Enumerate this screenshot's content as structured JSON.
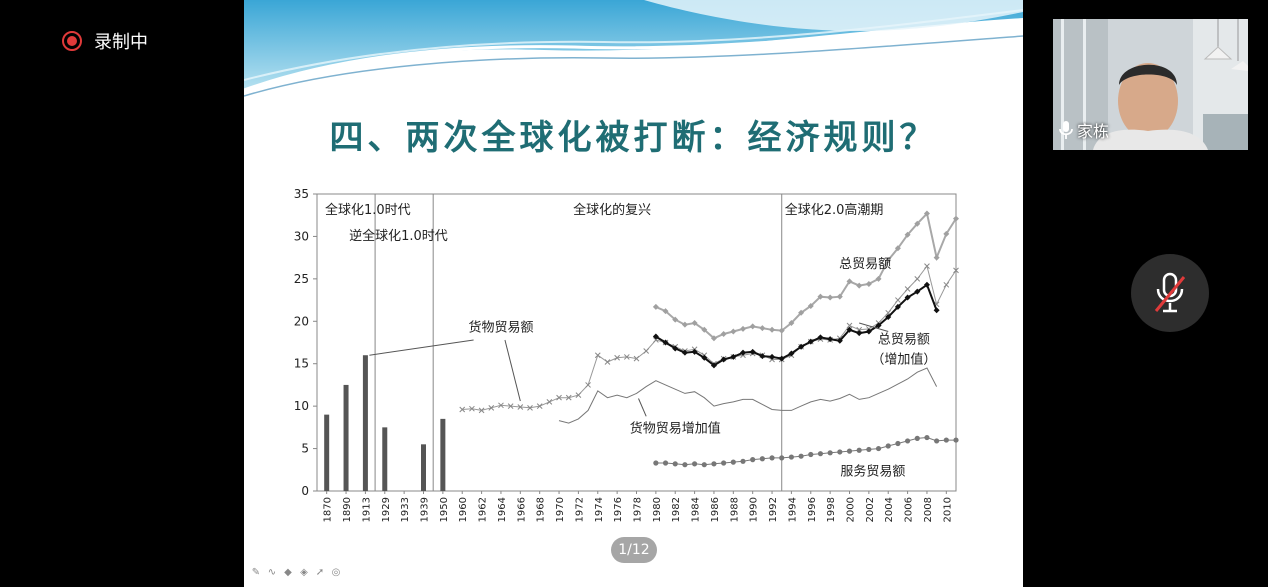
{
  "recording": {
    "label": "录制中",
    "color": "#e03a3a"
  },
  "slide": {
    "title": "四、两次全球化被打断：经济规则？",
    "page_indicator": "1/12",
    "title_color": "#1f6d74"
  },
  "webcam": {
    "name": "家栋"
  },
  "chart_data": {
    "type": "line",
    "ylim": [
      0,
      35
    ],
    "yticks": [
      "0",
      "5",
      "10",
      "15",
      "20",
      "25",
      "30",
      "35"
    ],
    "xtick_labels": [
      "1870",
      "1890",
      "1913",
      "1929",
      "1933",
      "1939",
      "1950",
      "1960",
      "1962",
      "1964",
      "1966",
      "1968",
      "1970",
      "1972",
      "1974",
      "1976",
      "1978",
      "1980",
      "1982",
      "1984",
      "1986",
      "1988",
      "1990",
      "1992",
      "1994",
      "1996",
      "1998",
      "2000",
      "2002",
      "2004",
      "2006",
      "2008",
      "2010"
    ],
    "era_labels": [
      "全球化1.0时代",
      "逆全球化1.0时代",
      "全球化的复兴",
      "全球化2.0高潮期"
    ],
    "bars": {
      "categories": [
        "1870",
        "1890",
        "1913",
        "1929",
        "1939",
        "1950"
      ],
      "values": [
        9,
        12.5,
        16,
        7.5,
        5.5,
        8.5
      ]
    },
    "series": [
      {
        "name": "货物贸易额",
        "x": [
          1960,
          1961,
          1962,
          1963,
          1964,
          1965,
          1966,
          1967,
          1968,
          1969,
          1970,
          1971,
          1972,
          1973,
          1974,
          1975,
          1976,
          1977,
          1978,
          1979,
          1980,
          1981,
          1982,
          1983,
          1984,
          1985,
          1986,
          1987,
          1988,
          1989,
          1990,
          1991,
          1992,
          1993,
          1994,
          1995,
          1996,
          1997,
          1998,
          1999,
          2000,
          2001,
          2002,
          2003,
          2004,
          2005,
          2006,
          2007,
          2008,
          2009,
          2010,
          2011
        ],
        "values": [
          9.6,
          9.7,
          9.5,
          9.8,
          10.1,
          10.0,
          9.9,
          9.8,
          10.0,
          10.5,
          11.0,
          11.0,
          11.3,
          12.5,
          16.0,
          15.2,
          15.7,
          15.8,
          15.6,
          16.5,
          17.8,
          17.5,
          17.0,
          16.5,
          16.7,
          16.0,
          15.0,
          15.6,
          15.8,
          16.0,
          16.2,
          16.0,
          15.5,
          15.5,
          16.0,
          17.0,
          17.6,
          17.9,
          17.8,
          18.0,
          19.5,
          19.0,
          19.1,
          19.8,
          21.0,
          22.5,
          23.8,
          25.0,
          26.5,
          22.0,
          24.3,
          26.0
        ]
      },
      {
        "name": "总贸易额",
        "x": [
          1980,
          1981,
          1982,
          1983,
          1984,
          1985,
          1986,
          1987,
          1988,
          1989,
          1990,
          1991,
          1992,
          1993,
          1994,
          1995,
          1996,
          1997,
          1998,
          1999,
          2000,
          2001,
          2002,
          2003,
          2004,
          2005,
          2006,
          2007,
          2008,
          2009,
          2010,
          2011
        ],
        "values": [
          21.7,
          21.2,
          20.2,
          19.6,
          19.8,
          19.0,
          18.0,
          18.5,
          18.8,
          19.1,
          19.4,
          19.2,
          19.0,
          18.9,
          19.8,
          21.0,
          21.8,
          22.9,
          22.8,
          22.9,
          24.7,
          24.2,
          24.4,
          25.0,
          27.2,
          28.6,
          30.2,
          31.5,
          32.7,
          27.5,
          30.3,
          32.1
        ]
      },
      {
        "name": "总贸易额（增加值）",
        "x": [
          1980,
          1981,
          1982,
          1983,
          1984,
          1985,
          1986,
          1987,
          1988,
          1989,
          1990,
          1991,
          1992,
          1993,
          1994,
          1995,
          1996,
          1997,
          1998,
          1999,
          2000,
          2001,
          2002,
          2003,
          2004,
          2005,
          2006,
          2007,
          2008,
          2009,
          2010
        ],
        "values": [
          18.2,
          17.5,
          16.8,
          16.3,
          16.4,
          15.7,
          14.8,
          15.5,
          15.8,
          16.3,
          16.4,
          15.9,
          15.8,
          15.6,
          16.2,
          17.0,
          17.6,
          18.1,
          17.9,
          17.7,
          19.0,
          18.6,
          18.8,
          19.5,
          20.5,
          21.7,
          22.8,
          23.5,
          24.3,
          21.3,
          null
        ]
      },
      {
        "name": "货物贸易增加值",
        "x": [
          1970,
          1971,
          1972,
          1973,
          1974,
          1975,
          1976,
          1977,
          1978,
          1979,
          1980,
          1981,
          1982,
          1983,
          1984,
          1985,
          1986,
          1987,
          1988,
          1989,
          1990,
          1991,
          1992,
          1993,
          1994,
          1995,
          1996,
          1997,
          1998,
          1999,
          2000,
          2001,
          2002,
          2003,
          2004,
          2005,
          2006,
          2007,
          2008,
          2009
        ],
        "values": [
          8.3,
          8.0,
          8.5,
          9.5,
          11.8,
          11.0,
          11.3,
          11.0,
          11.5,
          12.3,
          13.0,
          12.5,
          12.0,
          11.5,
          11.7,
          11.0,
          10.0,
          10.3,
          10.5,
          10.8,
          10.8,
          10.2,
          9.6,
          9.5,
          9.5,
          10.0,
          10.5,
          10.8,
          10.6,
          10.9,
          11.4,
          10.8,
          11.0,
          11.5,
          12.0,
          12.6,
          13.2,
          14.0,
          14.5,
          12.3
        ]
      },
      {
        "name": "服务贸易额",
        "x": [
          1980,
          1981,
          1982,
          1983,
          1984,
          1985,
          1986,
          1987,
          1988,
          1989,
          1990,
          1991,
          1992,
          1993,
          1994,
          1995,
          1996,
          1997,
          1998,
          1999,
          2000,
          2001,
          2002,
          2003,
          2004,
          2005,
          2006,
          2007,
          2008,
          2009,
          2010,
          2011
        ],
        "values": [
          3.3,
          3.3,
          3.2,
          3.1,
          3.2,
          3.1,
          3.2,
          3.3,
          3.4,
          3.5,
          3.7,
          3.8,
          3.9,
          3.9,
          4.0,
          4.1,
          4.3,
          4.4,
          4.5,
          4.6,
          4.7,
          4.8,
          4.9,
          5.0,
          5.3,
          5.6,
          5.9,
          6.2,
          6.3,
          5.9,
          6.0,
          6.0
        ]
      }
    ],
    "annotations": {
      "goods": "货物贸易额",
      "total": "总贸易额",
      "total_va_1": "总贸易额",
      "total_va_2": "（增加值）",
      "goods_va": "货物贸易增加值",
      "services": "服务贸易额"
    }
  }
}
